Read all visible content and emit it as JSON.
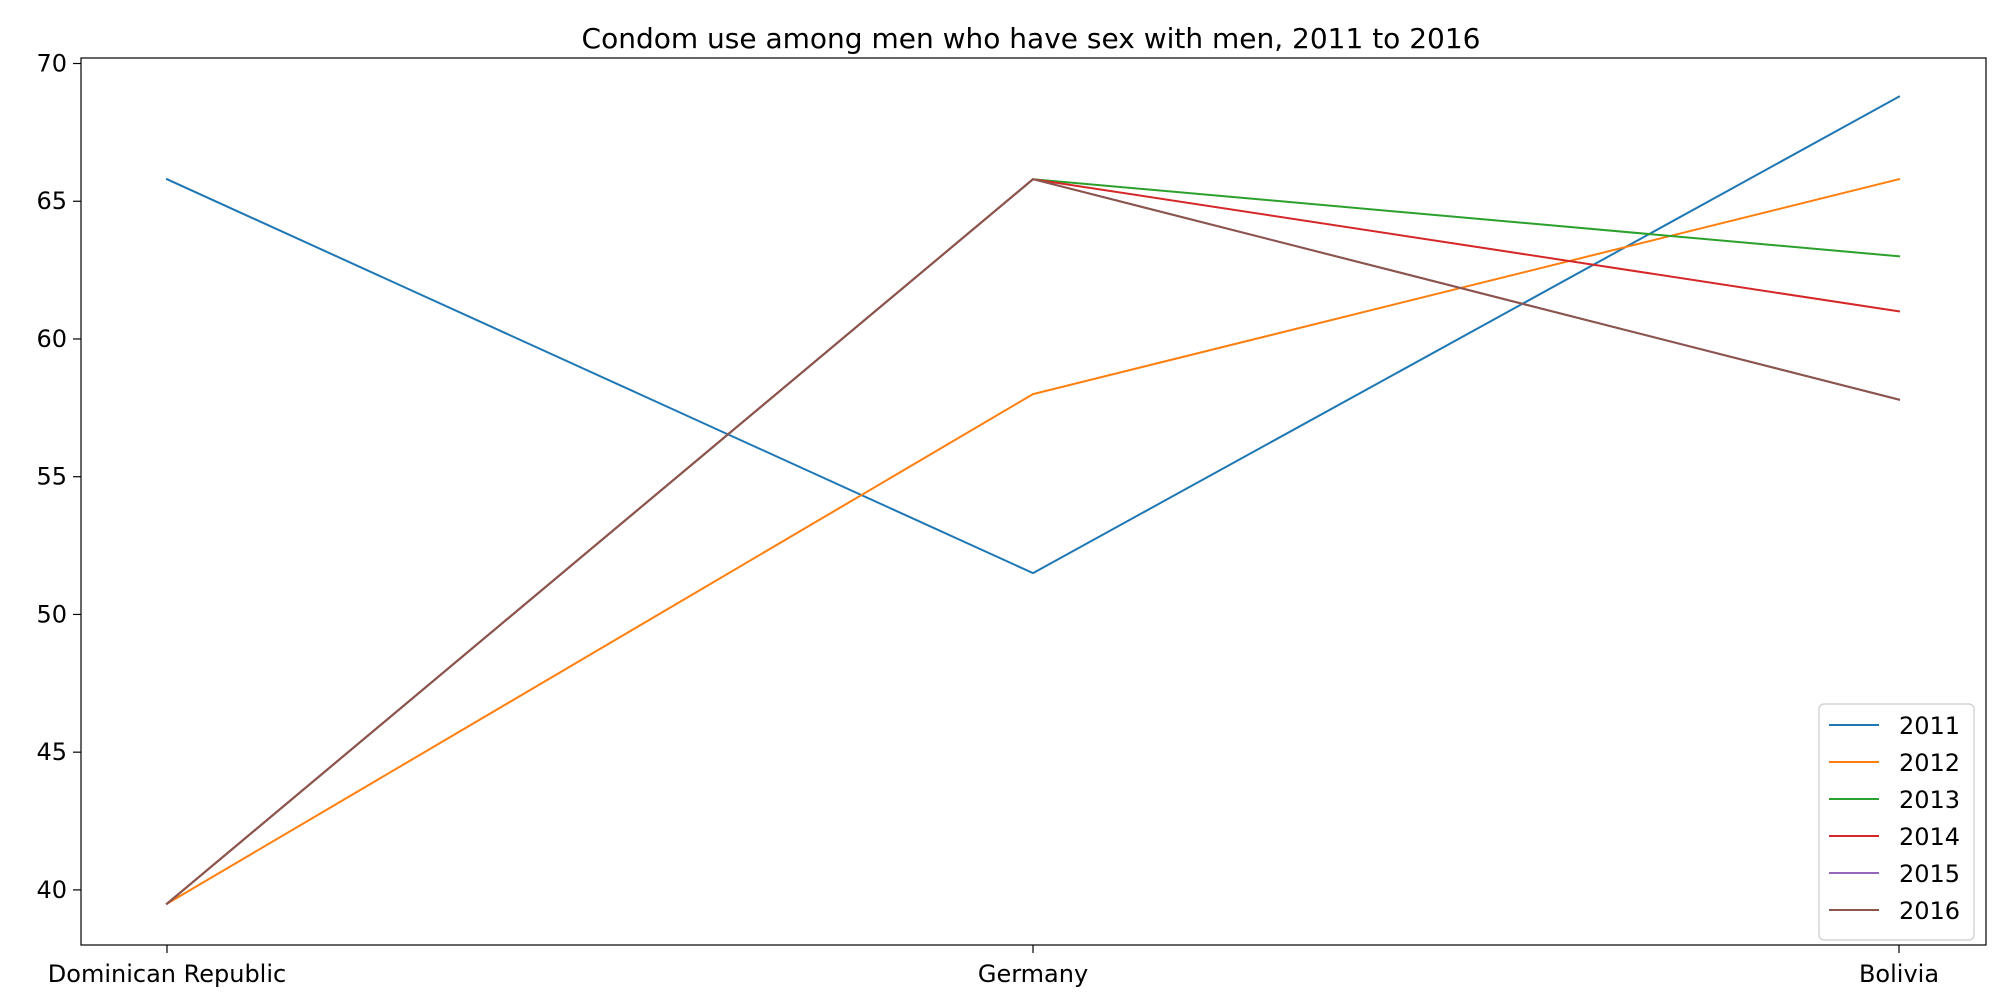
{
  "chart_data": {
    "type": "line",
    "title": "Condom use among men who have sex with men, 2011 to 2016",
    "xlabel": "",
    "ylabel": "",
    "categories": [
      "Dominican Republic",
      "Germany",
      "Bolivia"
    ],
    "ylim": [
      38,
      70.2
    ],
    "yticks": [
      40,
      45,
      50,
      55,
      60,
      65,
      70
    ],
    "grid": false,
    "legend": "bottom-right",
    "series": [
      {
        "name": "2011",
        "color": "#1f77b4",
        "values": [
          65.8,
          51.5,
          68.8
        ]
      },
      {
        "name": "2012",
        "color": "#ff7f0e",
        "values": [
          39.5,
          58.0,
          65.8
        ]
      },
      {
        "name": "2013",
        "color": "#2ca02c",
        "values": [
          39.5,
          65.8,
          63.0
        ]
      },
      {
        "name": "2014",
        "color": "#d62728",
        "values": [
          39.5,
          65.8,
          61.0
        ]
      },
      {
        "name": "2015",
        "color": "#9467bd",
        "values": [
          39.5,
          65.8,
          57.8
        ]
      },
      {
        "name": "2016",
        "color": "#8c564b",
        "values": [
          39.5,
          65.8,
          57.8
        ]
      }
    ]
  }
}
